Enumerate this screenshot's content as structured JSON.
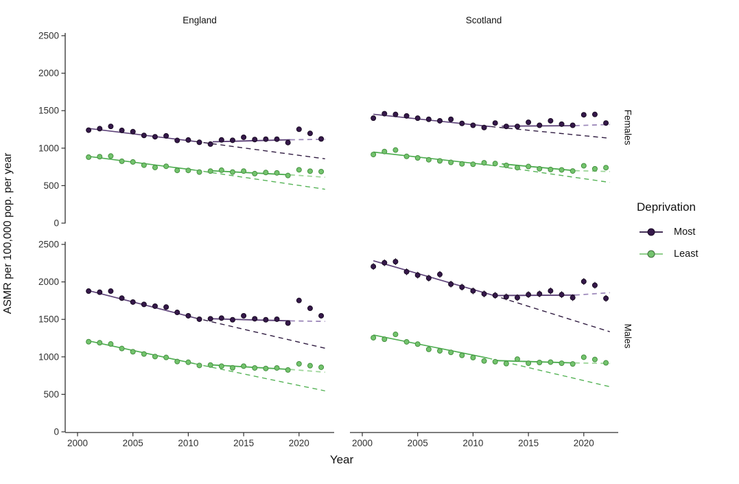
{
  "figure": {
    "y_axis_title": "ASMR per 100,000 pop. per year",
    "x_axis_title": "Year",
    "col_strips": {
      "left": "England",
      "right": "Scotland"
    },
    "row_strips": {
      "top": "Females",
      "bottom": "Males"
    }
  },
  "legend": {
    "title": "Deprivation",
    "items": [
      {
        "label": "Most",
        "point": "#35184a",
        "line": "#453057"
      },
      {
        "label": "Least",
        "point": "#73c36d",
        "line": "#8fce8b"
      }
    ]
  },
  "colors": {
    "axis": "#2e2e2e",
    "tick_label": "#303030",
    "most": {
      "point": "#35184a",
      "stroke": "#1a0c24",
      "fit": "#5e4379",
      "cf": "#2f1b40",
      "post": "#9d89ba"
    },
    "least": {
      "point": "#73c36d",
      "stroke": "#459140",
      "fit": "#4fae52",
      "cf": "#55b356",
      "post": "#9ed69a"
    }
  },
  "chart_data": {
    "type": "scatter",
    "title": "",
    "xlabel": "Year",
    "ylabel": "ASMR per 100,000 pop. per year",
    "legend_title": "Deprivation",
    "legend_entries": [
      "Most",
      "Least"
    ],
    "x_ticks": [
      2000,
      2005,
      2010,
      2015,
      2020
    ],
    "y_ticks": [
      0,
      500,
      1000,
      1500,
      2000,
      2500
    ],
    "ylim": [
      0,
      2500
    ],
    "xlim": [
      1999.5,
      2023
    ],
    "years": [
      2001,
      2002,
      2003,
      2004,
      2005,
      2006,
      2007,
      2008,
      2009,
      2010,
      2011,
      2012,
      2013,
      2014,
      2015,
      2016,
      2017,
      2018,
      2019,
      2020,
      2021,
      2022
    ],
    "facets": [
      {
        "col": "England",
        "row": "Females",
        "series": [
          {
            "name": "Most",
            "err": 13,
            "values": [
              1240,
              1260,
              1290,
              1237,
              1220,
              1170,
              1152,
              1164,
              1103,
              1109,
              1078,
              1054,
              1110,
              1105,
              1145,
              1115,
              1120,
              1120,
              1074,
              1252,
              1197,
              1123
            ],
            "fit_pre": [
              2001,
              1263,
              2010.6,
              1090
            ],
            "cf_end": 858,
            "fit_post": [
              2012.2,
              1085,
              2019.2,
              1112
            ],
            "post_end": 1118
          },
          {
            "name": "Least",
            "err": 10,
            "values": [
              880,
              886,
              895,
              825,
              816,
              773,
              742,
              758,
              703,
              703,
              681,
              694,
              706,
              681,
              694,
              660,
              675,
              670,
              635,
              711,
              693,
              687
            ],
            "fit_pre": [
              2001,
              890,
              2010.6,
              707
            ],
            "cf_end": 452,
            "fit_post": [
              2012.2,
              698,
              2019.2,
              644
            ],
            "post_end": 612
          }
        ]
      },
      {
        "col": "Scotland",
        "row": "Females",
        "series": [
          {
            "name": "Most",
            "err": 28,
            "values": [
              1400,
              1460,
              1450,
              1430,
              1400,
              1385,
              1365,
              1385,
              1330,
              1305,
              1275,
              1335,
              1290,
              1290,
              1345,
              1305,
              1365,
              1320,
              1305,
              1445,
              1450,
              1335
            ],
            "fit_pre": [
              2001,
              1452,
              2011.6,
              1288
            ],
            "cf_end": 1132,
            "fit_post": [
              2012.6,
              1293,
              2019.2,
              1300
            ],
            "post_end": 1316
          },
          {
            "name": "Least",
            "err": 22,
            "values": [
              915,
              955,
              975,
              890,
              870,
              845,
              830,
              810,
              790,
              785,
              805,
              795,
              770,
              740,
              755,
              725,
              715,
              710,
              695,
              765,
              725,
              740
            ],
            "fit_pre": [
              2001,
              948,
              2011.6,
              772
            ],
            "cf_end": 543,
            "fit_post": [
              2012.6,
              790,
              2019.2,
              700
            ],
            "post_end": 688
          }
        ]
      },
      {
        "col": "England",
        "row": "Males",
        "series": [
          {
            "name": "Most",
            "err": 16,
            "values": [
              1877,
              1862,
              1877,
              1783,
              1731,
              1700,
              1676,
              1664,
              1593,
              1548,
              1502,
              1508,
              1517,
              1495,
              1548,
              1508,
              1495,
              1502,
              1450,
              1752,
              1648,
              1548
            ],
            "fit_pre": [
              2001,
              1884,
              2010.6,
              1520
            ],
            "cf_end": 1115,
            "fit_post": [
              2012.2,
              1508,
              2019.2,
              1480
            ],
            "post_end": 1473
          },
          {
            "name": "Least",
            "err": 12,
            "values": [
              1202,
              1188,
              1172,
              1111,
              1068,
              1038,
              1004,
              992,
              937,
              928,
              885,
              891,
              876,
              854,
              876,
              852,
              845,
              852,
              825,
              907,
              882,
              861
            ],
            "fit_pre": [
              2001,
              1213,
              2010.6,
              908
            ],
            "cf_end": 546,
            "fit_post": [
              2012.2,
              892,
              2019.2,
              832
            ],
            "post_end": 795
          }
        ]
      },
      {
        "col": "Scotland",
        "row": "Males",
        "series": [
          {
            "name": "Most",
            "err": 45,
            "values": [
              2205,
              2255,
              2270,
              2135,
              2090,
              2050,
              2100,
              1970,
              1930,
              1880,
              1840,
              1820,
              1800,
              1790,
              1830,
              1840,
              1880,
              1830,
              1790,
              2005,
              1955,
              1780
            ],
            "fit_pre": [
              2001,
              2282,
              2011.8,
              1822
            ],
            "cf_end": 1335,
            "fit_post": [
              2012.2,
              1818,
              2019.2,
              1824
            ],
            "post_end": 1856
          },
          {
            "name": "Least",
            "err": 32,
            "values": [
              1255,
              1235,
              1300,
              1200,
              1170,
              1100,
              1080,
              1060,
              1020,
              990,
              945,
              935,
              910,
              970,
              915,
              925,
              930,
              915,
              905,
              995,
              965,
              920
            ],
            "fit_pre": [
              2001,
              1292,
              2011.3,
              985
            ],
            "cf_end": 602,
            "fit_post": [
              2012.2,
              950,
              2019.2,
              919
            ],
            "post_end": 912
          }
        ]
      }
    ]
  }
}
